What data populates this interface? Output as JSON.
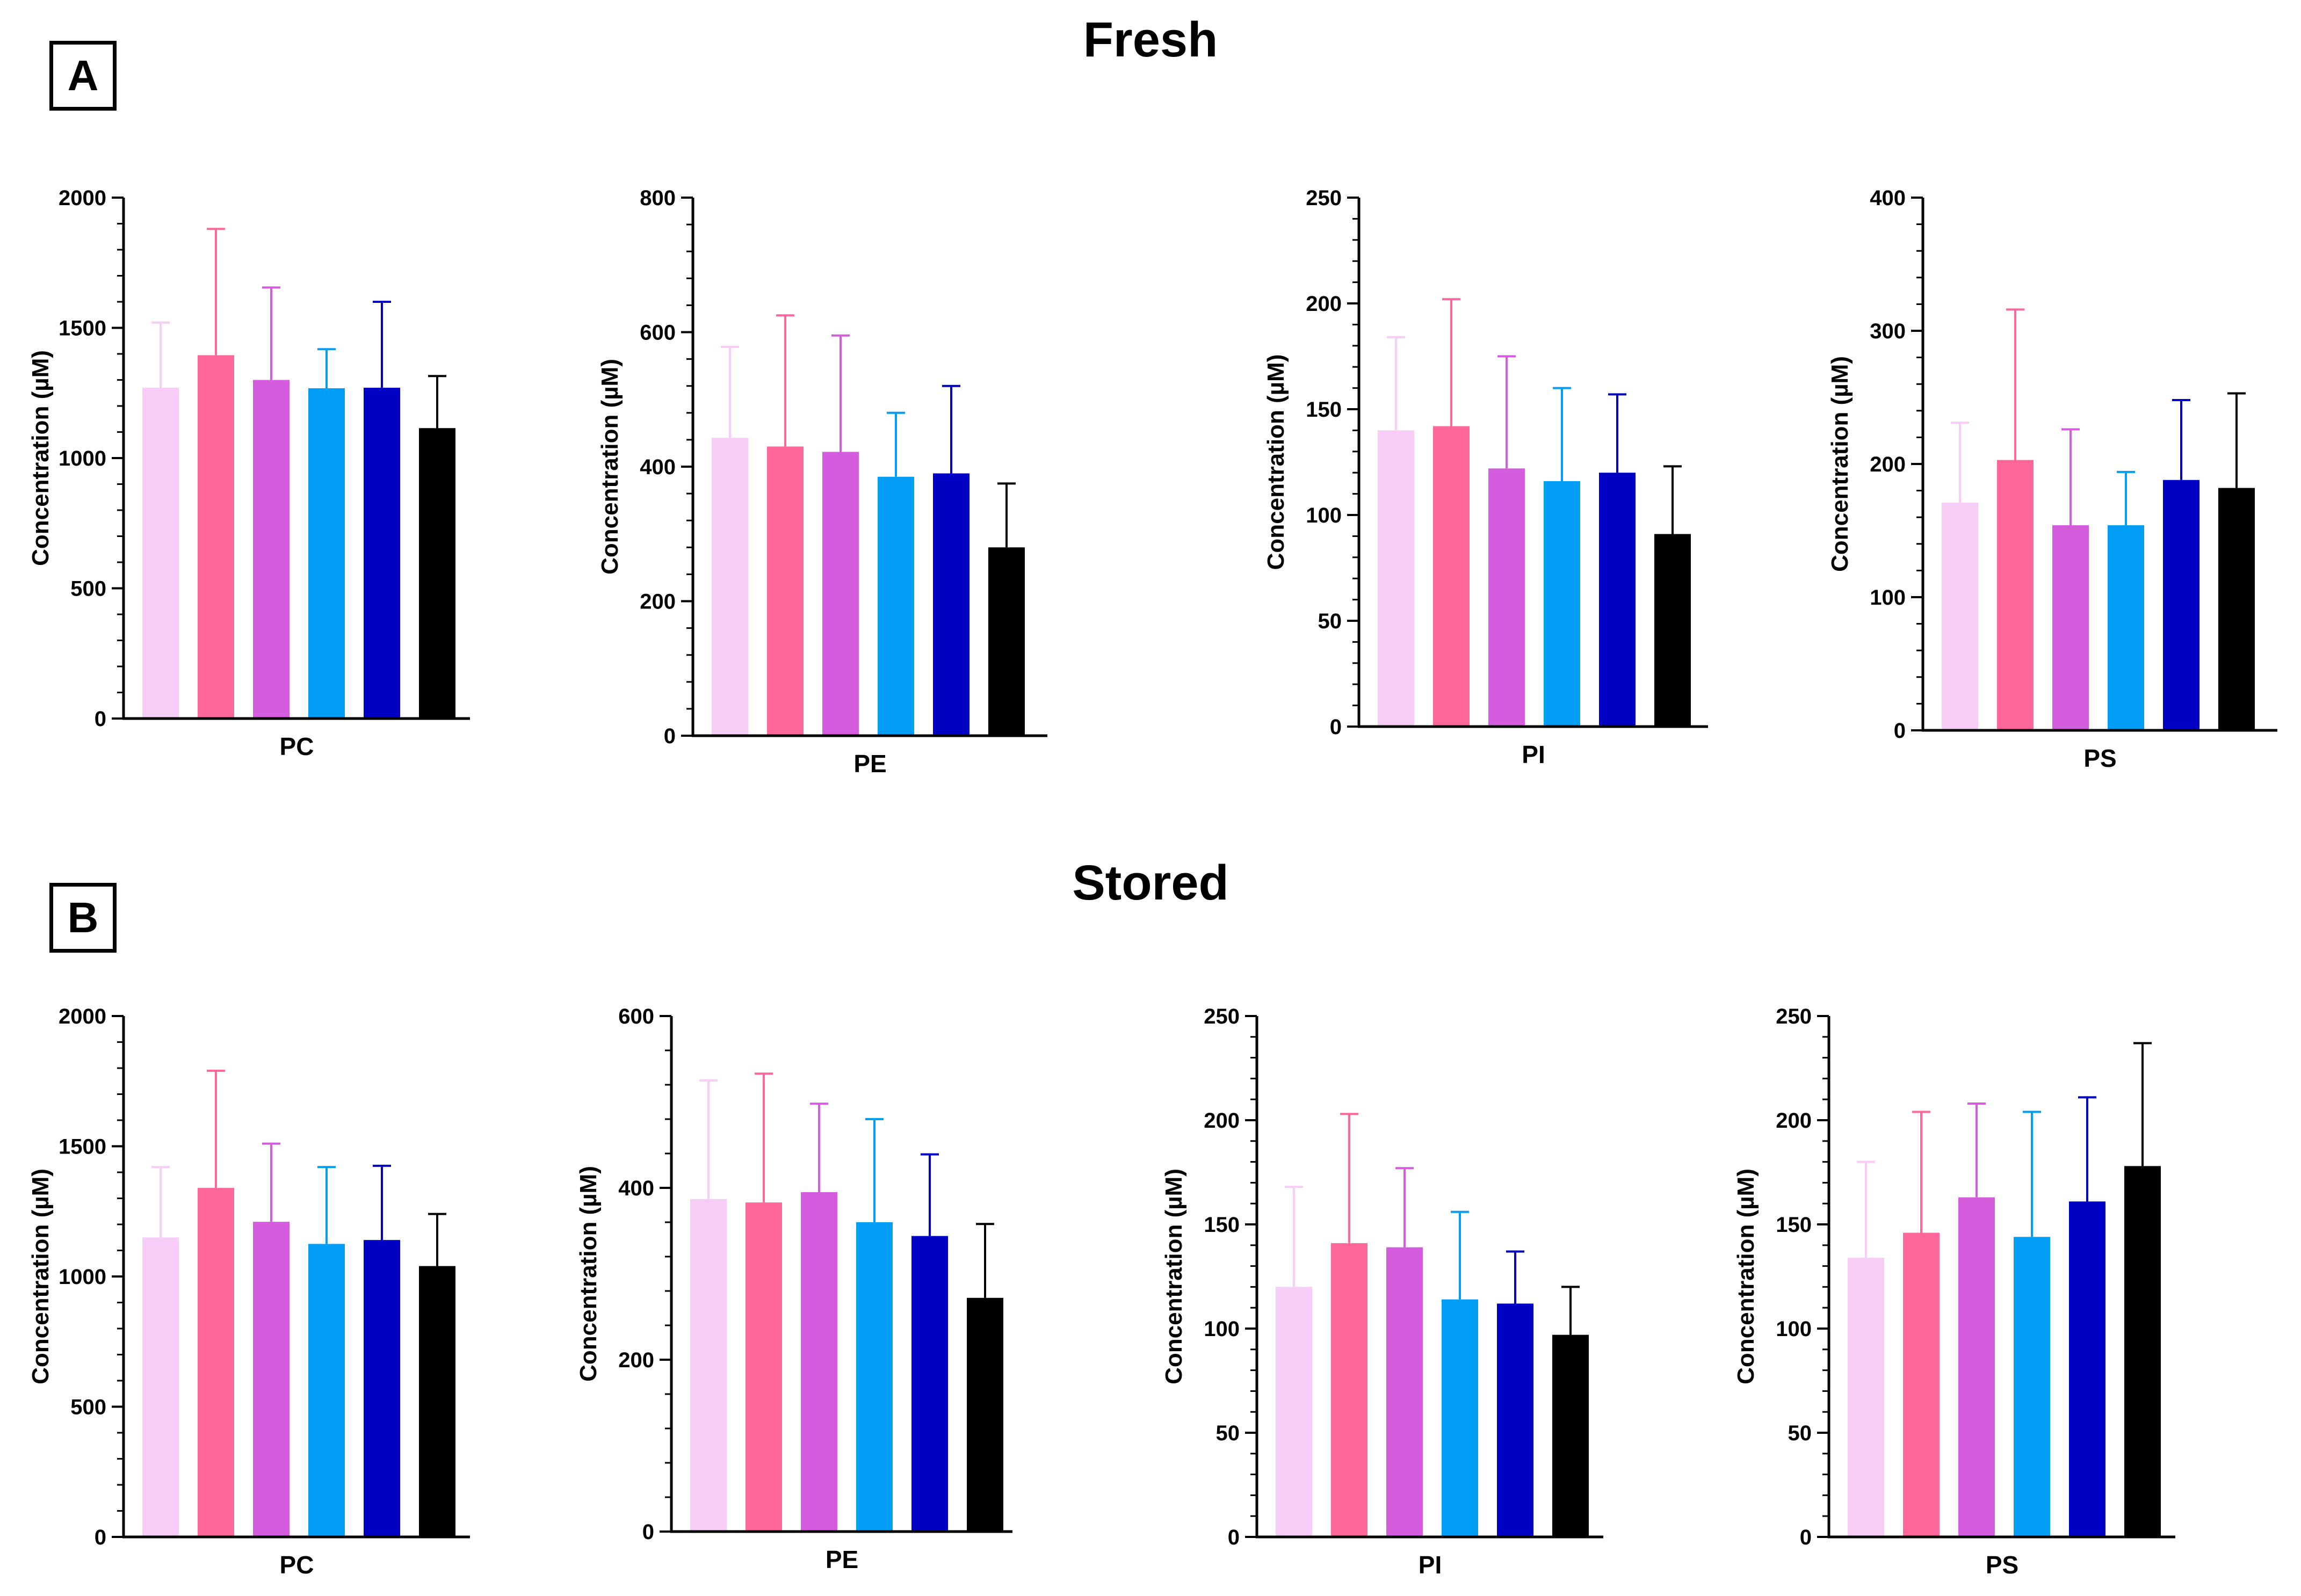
{
  "sections": [
    {
      "title": "Fresh",
      "label": "A"
    },
    {
      "title": "Stored",
      "label": "B"
    }
  ],
  "colors": [
    "#f7cdf7",
    "#ff6699",
    "#d35ddc",
    "#009ff5",
    "#0000c4",
    "#000000"
  ],
  "chart_data": [
    {
      "type": "bar",
      "section": "Fresh",
      "category": "PC",
      "ylabel": "Concentration (µM)",
      "ylim": [
        0,
        2000
      ],
      "ticks": [
        0,
        500,
        1000,
        1500,
        2000
      ],
      "minor_ticks": 5,
      "values": [
        1270,
        1395,
        1300,
        1268,
        1270,
        1115
      ],
      "errors": [
        250,
        485,
        355,
        150,
        330,
        200
      ]
    },
    {
      "type": "bar",
      "section": "Fresh",
      "category": "PE",
      "ylabel": "Concentration (µM)",
      "ylim": [
        0,
        800
      ],
      "ticks": [
        0,
        200,
        400,
        600,
        800
      ],
      "minor_ticks": 5,
      "values": [
        443,
        430,
        422,
        385,
        390,
        280
      ],
      "errors": [
        135,
        195,
        173,
        95,
        130,
        95
      ]
    },
    {
      "type": "bar",
      "section": "Fresh",
      "category": "PI",
      "ylabel": "Concentration (µM)",
      "ylim": [
        0,
        250
      ],
      "ticks": [
        0,
        50,
        100,
        150,
        200,
        250
      ],
      "minor_ticks": 5,
      "values": [
        140,
        142,
        122,
        116,
        120,
        91
      ],
      "errors": [
        44,
        60,
        53,
        44,
        37,
        32
      ]
    },
    {
      "type": "bar",
      "section": "Fresh",
      "category": "PS",
      "ylabel": "Concentration (µM)",
      "ylim": [
        0,
        400
      ],
      "ticks": [
        0,
        100,
        200,
        300,
        400
      ],
      "minor_ticks": 5,
      "values": [
        171,
        203,
        154,
        154,
        188,
        182
      ],
      "errors": [
        60,
        113,
        72,
        40,
        60,
        71
      ]
    },
    {
      "type": "bar",
      "section": "Stored",
      "category": "PC",
      "ylabel": "Concentration (µM)",
      "ylim": [
        0,
        2000
      ],
      "ticks": [
        0,
        500,
        1000,
        1500,
        2000
      ],
      "minor_ticks": 5,
      "values": [
        1150,
        1340,
        1210,
        1125,
        1140,
        1040
      ],
      "errors": [
        270,
        450,
        300,
        295,
        285,
        200
      ]
    },
    {
      "type": "bar",
      "section": "Stored",
      "category": "PE",
      "ylabel": "Concentration (µM)",
      "ylim": [
        0,
        600
      ],
      "ticks": [
        0,
        200,
        400,
        600
      ],
      "minor_ticks": 5,
      "values": [
        387,
        383,
        395,
        360,
        344,
        272
      ],
      "errors": [
        138,
        150,
        103,
        120,
        95,
        86
      ]
    },
    {
      "type": "bar",
      "section": "Stored",
      "category": "PI",
      "ylabel": "Concentration (µM)",
      "ylim": [
        0,
        250
      ],
      "ticks": [
        0,
        50,
        100,
        150,
        200,
        250
      ],
      "minor_ticks": 5,
      "values": [
        120,
        141,
        139,
        114,
        112,
        97
      ],
      "errors": [
        48,
        62,
        38,
        42,
        25,
        23
      ]
    },
    {
      "type": "bar",
      "section": "Stored",
      "category": "PS",
      "ylabel": "Concentration (µM)",
      "ylim": [
        0,
        250
      ],
      "ticks": [
        0,
        50,
        100,
        150,
        200,
        250
      ],
      "minor_ticks": 5,
      "values": [
        134,
        146,
        163,
        144,
        161,
        178
      ],
      "errors": [
        46,
        58,
        45,
        60,
        50,
        59
      ]
    }
  ]
}
